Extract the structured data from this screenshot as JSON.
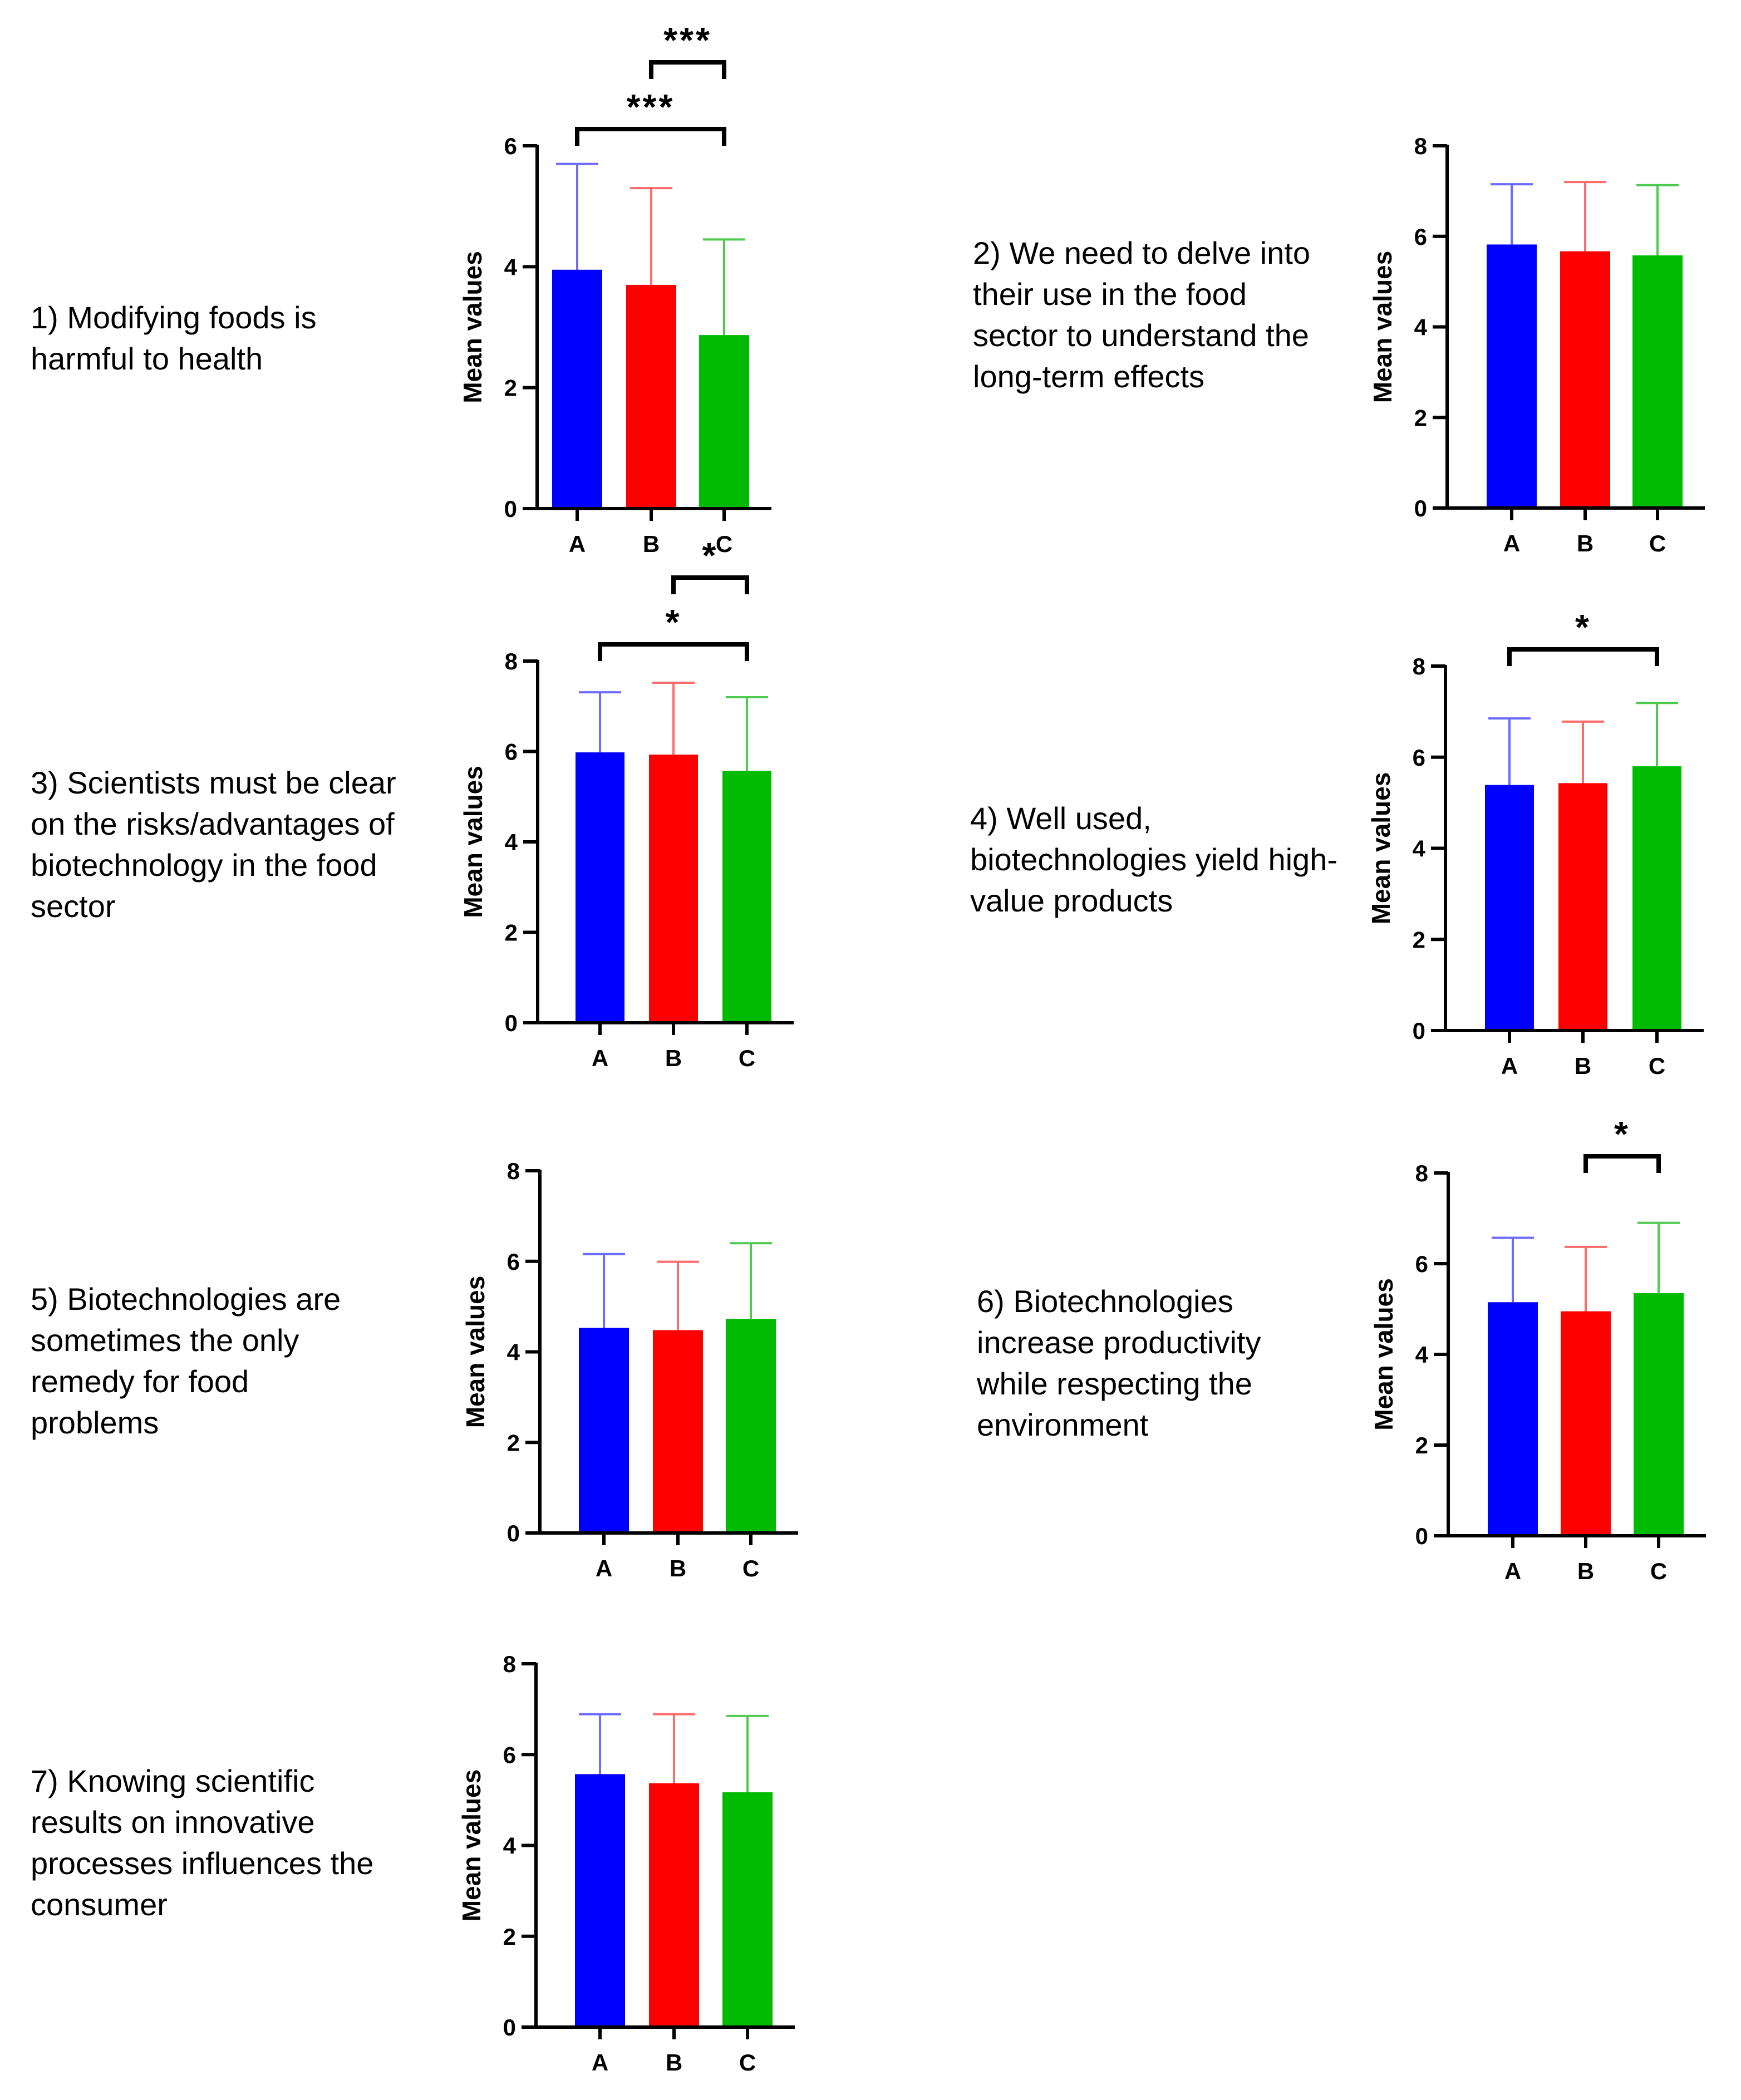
{
  "figure": {
    "colors": {
      "A": "#0000ff",
      "B": "#ff0000",
      "C": "#00bb00",
      "axis": "#000000"
    },
    "error_colors": {
      "A": "#6b6bff",
      "B": "#ff6b6b",
      "C": "#4ecb4e"
    }
  },
  "chart_data": [
    {
      "type": "bar",
      "title_lines": [
        "1) Modifying foods is",
        "harmful to health"
      ],
      "categories": [
        "A",
        "B",
        "C"
      ],
      "values": [
        3.95,
        3.7,
        2.87
      ],
      "errors": [
        1.75,
        1.6,
        1.58
      ],
      "ylabel": "Mean values",
      "ylim": [
        0,
        6
      ],
      "yticks": [
        0,
        2,
        4,
        6
      ],
      "significance": [
        {
          "from": "A",
          "to": "C",
          "label": "***",
          "level": 1
        },
        {
          "from": "B",
          "to": "C",
          "label": "***",
          "level": 2
        }
      ]
    },
    {
      "type": "bar",
      "title_lines": [
        "2) We need to delve into",
        "their use in the food",
        "sector to understand the",
        "long-term effects"
      ],
      "categories": [
        "A",
        "B",
        "C"
      ],
      "values": [
        5.82,
        5.67,
        5.58
      ],
      "errors": [
        1.33,
        1.53,
        1.55
      ],
      "ylabel": "Mean values",
      "ylim": [
        0,
        8
      ],
      "yticks": [
        0,
        2,
        4,
        6,
        8
      ],
      "significance": []
    },
    {
      "type": "bar",
      "title_lines": [
        "3) Scientists must be clear",
        "on the risks/advantages of",
        "biotechnology in the food",
        "sector"
      ],
      "categories": [
        "A",
        "B",
        "C"
      ],
      "values": [
        5.98,
        5.93,
        5.57
      ],
      "errors": [
        1.33,
        1.59,
        1.63
      ],
      "ylabel": "Mean values",
      "ylim": [
        0,
        8
      ],
      "yticks": [
        0,
        2,
        4,
        6,
        8
      ],
      "significance": [
        {
          "from": "A",
          "to": "C",
          "label": "*",
          "level": 1
        },
        {
          "from": "B",
          "to": "C",
          "label": "*",
          "level": 2
        }
      ]
    },
    {
      "type": "bar",
      "title_lines": [
        "4) Well used,",
        "biotechnologies yield high-",
        "value products"
      ],
      "categories": [
        "A",
        "B",
        "C"
      ],
      "values": [
        5.39,
        5.43,
        5.8
      ],
      "errors": [
        1.46,
        1.35,
        1.39
      ],
      "ylabel": "Mean values",
      "ylim": [
        0,
        8
      ],
      "yticks": [
        0,
        2,
        4,
        6,
        8
      ],
      "significance": [
        {
          "from": "A",
          "to": "C",
          "label": "*",
          "level": 1
        }
      ]
    },
    {
      "type": "bar",
      "title_lines": [
        "5) Biotechnologies are",
        "sometimes the only",
        "remedy for food",
        "problems"
      ],
      "categories": [
        "A",
        "B",
        "C"
      ],
      "values": [
        4.53,
        4.48,
        4.73
      ],
      "errors": [
        1.63,
        1.51,
        1.67
      ],
      "ylabel": "Mean values",
      "ylim": [
        0,
        8
      ],
      "yticks": [
        0,
        2,
        4,
        6,
        8
      ],
      "significance": []
    },
    {
      "type": "bar",
      "title_lines": [
        "6) Biotechnologies",
        "increase productivity",
        "while respecting the",
        "environment"
      ],
      "categories": [
        "A",
        "B",
        "C"
      ],
      "values": [
        5.15,
        4.95,
        5.35
      ],
      "errors": [
        1.42,
        1.42,
        1.55
      ],
      "ylabel": "Mean values",
      "ylim": [
        0,
        8
      ],
      "yticks": [
        0,
        2,
        4,
        6,
        8
      ],
      "significance": [
        {
          "from": "B",
          "to": "C",
          "label": "*",
          "level": 1
        }
      ]
    },
    {
      "type": "bar",
      "title_lines": [
        "7) Knowing scientific",
        "results on innovative",
        "processes influences the",
        "consumer"
      ],
      "categories": [
        "A",
        "B",
        "C"
      ],
      "values": [
        5.57,
        5.37,
        5.17
      ],
      "errors": [
        1.32,
        1.52,
        1.68
      ],
      "ylabel": "Mean values",
      "ylim": [
        0,
        8
      ],
      "yticks": [
        0,
        2,
        4,
        6,
        8
      ],
      "significance": []
    }
  ]
}
